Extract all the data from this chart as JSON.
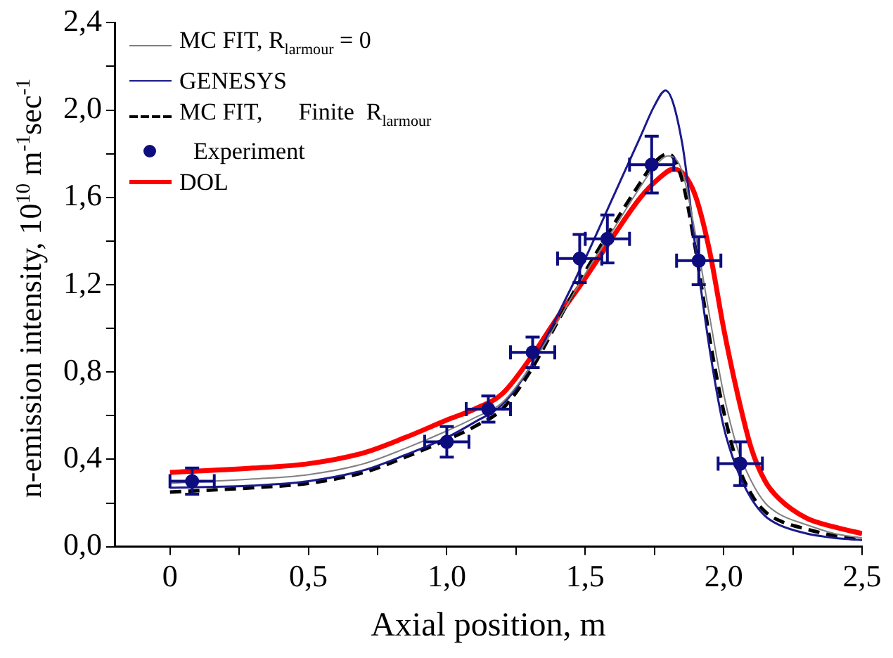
{
  "chart_data": {
    "type": "line",
    "xlabel": "Axial position, m",
    "ylabel": "n-emission intensity, 10$^{10}$ m$^{-1}$sec$^{-1}$",
    "xlim": [
      -0.2,
      2.5
    ],
    "ylim": [
      0,
      2.4
    ],
    "xticks": [
      0,
      {
        "value": 0.25,
        "label": null
      },
      {
        "value": 0.5,
        "label": "0,5"
      },
      {
        "value": 0.75,
        "label": null
      },
      {
        "value": 1,
        "label": "1,0"
      },
      {
        "value": 1.25,
        "label": null
      },
      {
        "value": 1.5,
        "label": "1,5"
      },
      {
        "value": 1.75,
        "label": null
      },
      {
        "value": 2,
        "label": "2,0"
      },
      {
        "value": 2.25,
        "label": null
      },
      {
        "value": 2.5,
        "label": "2,5"
      }
    ],
    "yticks": [
      {
        "value": 0,
        "label": "0,0"
      },
      {
        "value": 0.2,
        "label": null
      },
      {
        "value": 0.4,
        "label": "0,4"
      },
      {
        "value": 0.6,
        "label": null
      },
      {
        "value": 0.8,
        "label": "0,8"
      },
      {
        "value": 1,
        "label": null
      },
      {
        "value": 1.2,
        "label": "1,2"
      },
      {
        "value": 1.4,
        "label": null
      },
      {
        "value": 1.6,
        "label": "1,6"
      },
      {
        "value": 1.8,
        "label": null
      },
      {
        "value": 2,
        "label": "2,0"
      },
      {
        "value": 2.2,
        "label": null
      },
      {
        "value": 2.4,
        "label": "2,4"
      }
    ],
    "grid": false,
    "legend": "top left",
    "series": [
      {
        "name": "MC FIT, R$_{larmour}$ = 0",
        "color": "#808080",
        "line_style": "solid",
        "x": [
          0,
          0.3,
          0.5,
          0.7,
          0.85,
          1.0,
          1.1,
          1.2,
          1.3,
          1.4,
          1.5,
          1.6,
          1.7,
          1.75,
          1.8,
          1.85,
          1.9,
          1.95,
          2.0,
          2.05,
          2.1,
          2.15,
          2.2,
          2.3,
          2.4,
          2.5
        ],
        "values": [
          0.29,
          0.31,
          0.33,
          0.38,
          0.45,
          0.53,
          0.59,
          0.66,
          0.82,
          1.03,
          1.25,
          1.45,
          1.65,
          1.74,
          1.79,
          1.72,
          1.42,
          1.05,
          0.7,
          0.45,
          0.3,
          0.2,
          0.15,
          0.1,
          0.06,
          0.04
        ]
      },
      {
        "name": "GENESYS",
        "color": "#1a1a8c",
        "line_style": "solid",
        "x": [
          0,
          0.3,
          0.5,
          0.7,
          0.85,
          1.0,
          1.1,
          1.2,
          1.3,
          1.4,
          1.5,
          1.6,
          1.7,
          1.75,
          1.79,
          1.85,
          1.9,
          1.95,
          2.0,
          2.05,
          2.1,
          2.15,
          2.2,
          2.3,
          2.4,
          2.5
        ],
        "values": [
          0.27,
          0.28,
          0.3,
          0.35,
          0.42,
          0.5,
          0.57,
          0.65,
          0.82,
          1.06,
          1.32,
          1.6,
          1.88,
          2.02,
          2.09,
          1.85,
          1.35,
          0.9,
          0.55,
          0.35,
          0.22,
          0.14,
          0.1,
          0.06,
          0.04,
          0.03
        ]
      },
      {
        "name": "MC FIT,      Finite  R$_{larmour}$",
        "color": "#000000",
        "line_style": "dashed",
        "x": [
          0,
          0.3,
          0.5,
          0.7,
          0.85,
          1.0,
          1.1,
          1.2,
          1.3,
          1.4,
          1.5,
          1.6,
          1.7,
          1.75,
          1.8,
          1.85,
          1.9,
          1.95,
          2.0,
          2.05,
          2.1,
          2.15,
          2.2,
          2.3,
          2.4,
          2.5
        ],
        "values": [
          0.25,
          0.27,
          0.29,
          0.34,
          0.41,
          0.49,
          0.55,
          0.63,
          0.8,
          1.03,
          1.26,
          1.47,
          1.67,
          1.76,
          1.8,
          1.68,
          1.35,
          0.95,
          0.62,
          0.38,
          0.24,
          0.16,
          0.12,
          0.08,
          0.05,
          0.03
        ]
      },
      {
        "name": "Experiment",
        "type": "scatter",
        "color": "#0d0d80",
        "marker": "circle",
        "x": [
          0.08,
          1.0,
          1.15,
          1.31,
          1.48,
          1.58,
          1.74,
          1.91,
          2.06
        ],
        "values": [
          0.3,
          0.48,
          0.63,
          0.89,
          1.32,
          1.41,
          1.75,
          1.31,
          0.38
        ],
        "errors": [
          0.06,
          0.07,
          0.06,
          0.07,
          0.11,
          0.11,
          0.13,
          0.11,
          0.1
        ],
        "xerrors": [
          0.08,
          0.08,
          0.08,
          0.08,
          0.08,
          0.08,
          0.08,
          0.08,
          0.08
        ]
      },
      {
        "name": "DOL",
        "color": "#ff0000",
        "line_style": "solid",
        "x": [
          0,
          0.3,
          0.5,
          0.7,
          0.85,
          1.0,
          1.1,
          1.2,
          1.3,
          1.4,
          1.5,
          1.6,
          1.7,
          1.76,
          1.82,
          1.86,
          1.9,
          1.95,
          2.0,
          2.05,
          2.1,
          2.15,
          2.2,
          2.3,
          2.4,
          2.5
        ],
        "values": [
          0.34,
          0.36,
          0.38,
          0.43,
          0.5,
          0.58,
          0.63,
          0.7,
          0.86,
          1.05,
          1.23,
          1.42,
          1.6,
          1.68,
          1.73,
          1.7,
          1.6,
          1.35,
          1.0,
          0.7,
          0.45,
          0.3,
          0.22,
          0.13,
          0.09,
          0.06
        ]
      }
    ]
  }
}
